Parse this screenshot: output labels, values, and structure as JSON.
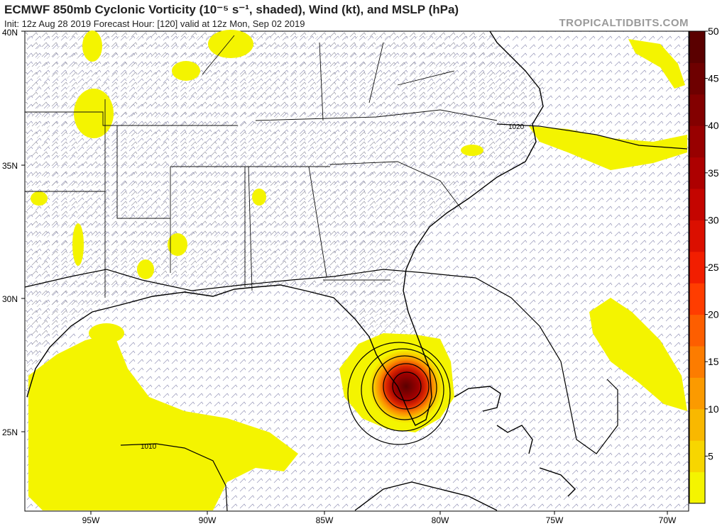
{
  "header": {
    "title": "ECMWF 850mb Cyclonic Vorticity (10⁻⁵ s⁻¹, shaded), Wind (kt), and MSLP (hPa)",
    "subtitle": "Init: 12z Aug 28 2019   Forecast Hour: [120]   valid at 12z Mon, Sep 02 2019",
    "brand": "TROPICALTIDBITS.COM"
  },
  "map": {
    "lat_labels": [
      "40N",
      "35N",
      "30N",
      "25N"
    ],
    "lon_labels": [
      "95W",
      "90W",
      "85W",
      "80W",
      "75W",
      "70W"
    ],
    "isobar_labels": [
      "1020",
      "1010"
    ]
  },
  "colorbar": {
    "ticks": [
      "50",
      "45",
      "40",
      "35",
      "30",
      "25",
      "20",
      "15",
      "10",
      "5"
    ],
    "colors": [
      "#f4f400",
      "#f7d600",
      "#f9b800",
      "#fb9a00",
      "#fc7c00",
      "#fd5e00",
      "#ff3d00",
      "#f21e00",
      "#db0f00",
      "#c40500",
      "#ad0000",
      "#980000",
      "#830000",
      "#6e0000",
      "#5a0000"
    ]
  },
  "colors": {
    "vorticity_low": "#f4f400",
    "vorticity_high": "#5a0000",
    "coastline": "#000000",
    "barbs": "#2f2f6f",
    "land_barbs": "#7a7a8a"
  }
}
